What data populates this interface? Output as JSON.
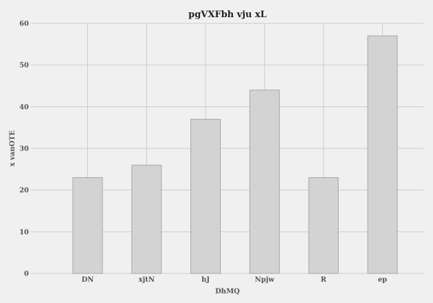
{
  "chart_data": {
    "type": "bar",
    "title": "pgVXFbh vju xL",
    "xlabel": "DhMQ",
    "ylabel": "x vanOTE",
    "categories": [
      "DN",
      "xjtN",
      "hJ",
      "Npjw",
      "R",
      "ep"
    ],
    "values": [
      23,
      26,
      37,
      44,
      23,
      57
    ],
    "ylim": [
      0,
      60
    ],
    "yticks": [
      0,
      10,
      20,
      30,
      40,
      50,
      60
    ],
    "grid": true,
    "legend": "none",
    "colors": {
      "background": "#f0f0f0",
      "bar_fill": "#d3d3d3",
      "bar_stroke": "#a6a6a6",
      "grid": "#cbcbcb"
    }
  }
}
